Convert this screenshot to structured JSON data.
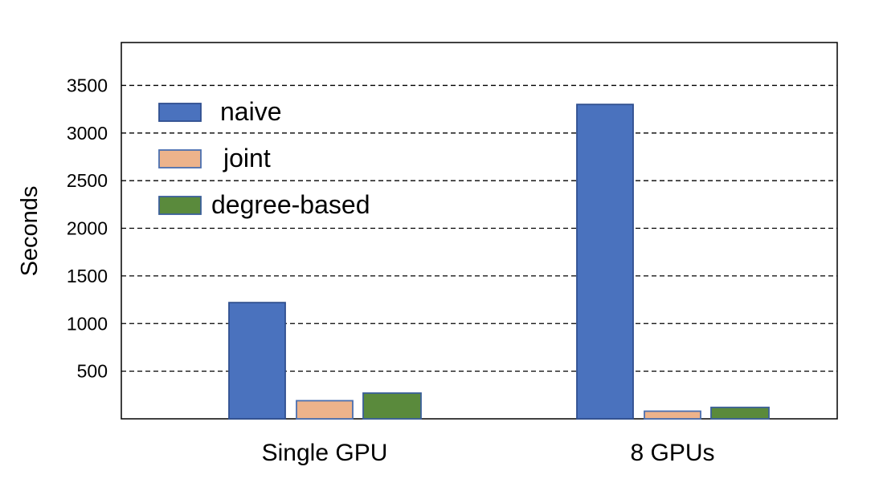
{
  "chart_data": {
    "type": "bar",
    "title": "",
    "xlabel": "",
    "ylabel": "Seconds",
    "categories": [
      "Single GPU",
      "8 GPUs"
    ],
    "series": [
      {
        "name": "naive",
        "color": "#4a72be",
        "edge_color": "#2f4f8f",
        "values": [
          1220,
          3300
        ]
      },
      {
        "name": "joint",
        "color": "#edb38b",
        "edge_color": "#4a6fb0",
        "values": [
          190,
          80
        ]
      },
      {
        "name": "degree-based",
        "color": "#5a8a3c",
        "edge_color": "#3b5f9a",
        "values": [
          270,
          120
        ]
      }
    ],
    "yticks": [
      500,
      1000,
      1500,
      2000,
      2500,
      3000,
      3500
    ],
    "ylim": [
      0,
      3950
    ],
    "grid": "horizontal dashed",
    "legend_position": "top-left, inside plot"
  }
}
